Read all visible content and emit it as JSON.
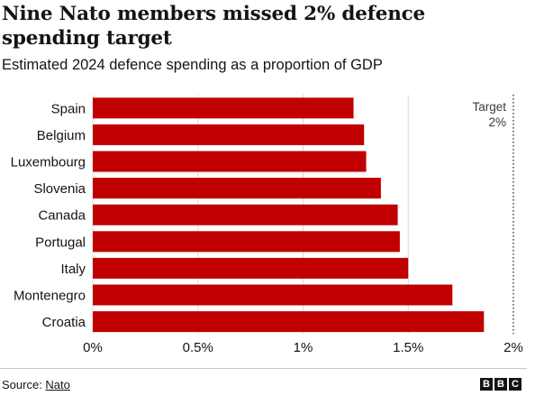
{
  "title": "Nine Nato members missed 2% defence spending target",
  "subtitle": "Estimated 2024 defence spending as a proportion of GDP",
  "source_label": "Source: ",
  "source_link": "Nato",
  "brand_letters": [
    "B",
    "B",
    "C"
  ],
  "chart_data": {
    "type": "bar",
    "orientation": "horizontal",
    "categories": [
      "Spain",
      "Belgium",
      "Luxembourg",
      "Slovenia",
      "Canada",
      "Portugal",
      "Italy",
      "Montenegro",
      "Croatia"
    ],
    "values": [
      1.24,
      1.29,
      1.3,
      1.37,
      1.45,
      1.46,
      1.5,
      1.71,
      1.86
    ],
    "xlim": [
      0,
      2
    ],
    "x_ticks": [
      0,
      0.5,
      1,
      1.5,
      2
    ],
    "x_tick_labels": [
      "0%",
      "0.5%",
      "1%",
      "1.5%",
      "2%"
    ],
    "bar_color": "#c00000",
    "grid": true,
    "annotation": {
      "text_line1": "Target",
      "text_line2": "2%",
      "x": 2
    }
  }
}
